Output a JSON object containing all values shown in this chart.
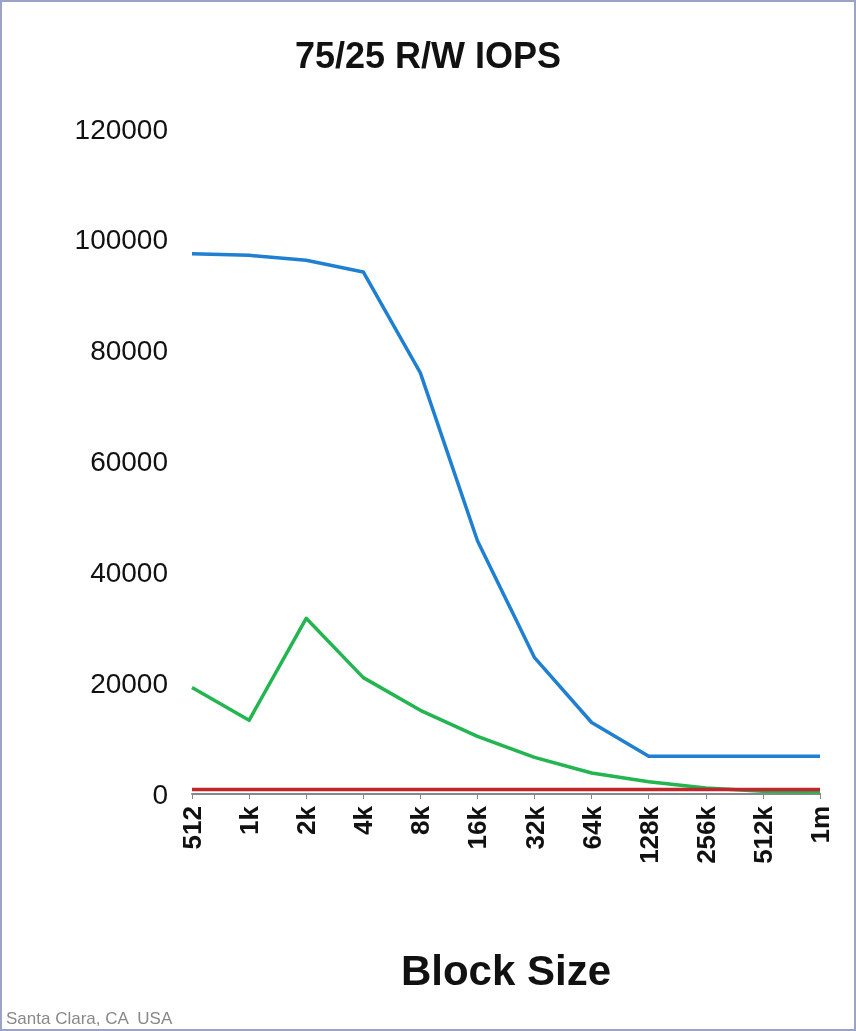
{
  "chart_data": {
    "type": "line",
    "title": "75/25 R/W IOPS",
    "xlabel": "Block Size",
    "categories": [
      "512",
      "1k",
      "2k",
      "4k",
      "8k",
      "16k",
      "32k",
      "64k",
      "128k",
      "256k",
      "512k",
      "1m"
    ],
    "series": [
      {
        "color": "#1f7fd0",
        "values": [
          97500,
          97200,
          96300,
          94200,
          76000,
          45700,
          24600,
          12900,
          6800,
          6800,
          6800,
          6800
        ]
      },
      {
        "color": "#22b550",
        "values": [
          19200,
          13300,
          31700,
          21000,
          15100,
          10400,
          6600,
          3800,
          2200,
          1100,
          500,
          400
        ]
      },
      {
        "color": "#c0262c",
        "values": [
          800,
          800,
          800,
          800,
          800,
          800,
          800,
          800,
          800,
          800,
          800,
          800
        ]
      }
    ],
    "ylim": [
      0,
      120000
    ],
    "yticks": [
      0,
      20000,
      40000,
      60000,
      80000,
      100000,
      120000
    ],
    "grid": false,
    "marker": "none",
    "line_style": "solid",
    "annotations": [
      "Santa Clara, CA  USA"
    ]
  }
}
